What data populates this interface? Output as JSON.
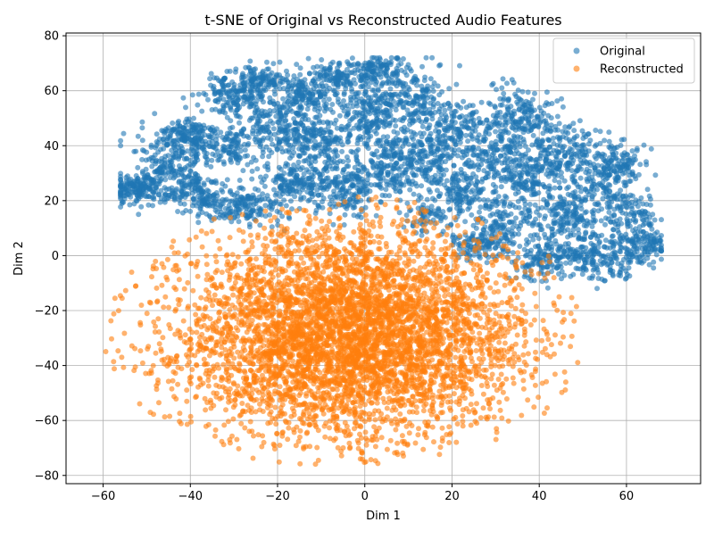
{
  "chart_data": {
    "type": "scatter",
    "title": "t-SNE of Original vs Reconstructed Audio Features",
    "xlabel": "Dim 1",
    "ylabel": "Dim 2",
    "xlim": [
      -68.5,
      77
    ],
    "ylim": [
      -83,
      81
    ],
    "xticks": [
      -60,
      -40,
      -20,
      0,
      20,
      40,
      60
    ],
    "yticks": [
      -80,
      -60,
      -40,
      -20,
      0,
      20,
      40,
      60,
      80
    ],
    "grid": true,
    "legend_position": "top-right",
    "series": [
      {
        "name": "Original",
        "color": "#1f77b4",
        "alpha": 0.6,
        "approx_count": 5000,
        "x_range": [
          -56,
          68
        ],
        "y_range": [
          -12,
          72
        ],
        "clusters": [
          {
            "x": -52,
            "y": 24,
            "sx": 3,
            "sy": 3,
            "n": 170
          },
          {
            "x": -45,
            "y": 33,
            "sx": 3.5,
            "sy": 6,
            "n": 200
          },
          {
            "x": -40,
            "y": 44,
            "sx": 3,
            "sy": 3,
            "n": 110
          },
          {
            "x": -38,
            "y": 22,
            "sx": 4,
            "sy": 4,
            "n": 150
          },
          {
            "x": -30,
            "y": 58,
            "sx": 4,
            "sy": 4,
            "n": 170
          },
          {
            "x": -32,
            "y": 40,
            "sx": 4,
            "sy": 4,
            "n": 160
          },
          {
            "x": -27,
            "y": 18,
            "sx": 4,
            "sy": 3.5,
            "n": 140
          },
          {
            "x": -24,
            "y": 64,
            "sx": 3,
            "sy": 3,
            "n": 110
          },
          {
            "x": -20,
            "y": 47,
            "sx": 4,
            "sy": 5,
            "n": 170
          },
          {
            "x": -16,
            "y": 26,
            "sx": 4,
            "sy": 5,
            "n": 170
          },
          {
            "x": -14,
            "y": 58,
            "sx": 3.5,
            "sy": 3.5,
            "n": 130
          },
          {
            "x": -10,
            "y": 42,
            "sx": 4,
            "sy": 6,
            "n": 200
          },
          {
            "x": -6,
            "y": 65,
            "sx": 4,
            "sy": 3,
            "n": 150
          },
          {
            "x": -4,
            "y": 24,
            "sx": 4,
            "sy": 5,
            "n": 170
          },
          {
            "x": 1,
            "y": 52,
            "sx": 4,
            "sy": 6,
            "n": 200
          },
          {
            "x": 4,
            "y": 68,
            "sx": 3,
            "sy": 2.5,
            "n": 90
          },
          {
            "x": 5,
            "y": 32,
            "sx": 3.5,
            "sy": 6,
            "n": 160
          },
          {
            "x": 10,
            "y": 58,
            "sx": 4,
            "sy": 6,
            "n": 180
          },
          {
            "x": 13,
            "y": 35,
            "sx": 4,
            "sy": 6,
            "n": 170
          },
          {
            "x": 14,
            "y": 14,
            "sx": 3,
            "sy": 3,
            "n": 70
          },
          {
            "x": 20,
            "y": 45,
            "sx": 4,
            "sy": 6,
            "n": 180
          },
          {
            "x": 23,
            "y": 24,
            "sx": 3.5,
            "sy": 5,
            "n": 140
          },
          {
            "x": 25,
            "y": 5,
            "sx": 3,
            "sy": 3,
            "n": 90
          },
          {
            "x": 30,
            "y": 38,
            "sx": 3.5,
            "sy": 6,
            "n": 160
          },
          {
            "x": 32,
            "y": 10,
            "sx": 4,
            "sy": 6,
            "n": 160
          },
          {
            "x": 36,
            "y": 52,
            "sx": 4,
            "sy": 5,
            "n": 160
          },
          {
            "x": 38,
            "y": 28,
            "sx": 4,
            "sy": 6,
            "n": 180
          },
          {
            "x": 40,
            "y": -2,
            "sx": 3,
            "sy": 4,
            "n": 100
          },
          {
            "x": 45,
            "y": 38,
            "sx": 4,
            "sy": 5,
            "n": 160
          },
          {
            "x": 46,
            "y": 14,
            "sx": 4,
            "sy": 5,
            "n": 150
          },
          {
            "x": 48,
            "y": 0,
            "sx": 3,
            "sy": 3,
            "n": 90
          },
          {
            "x": 53,
            "y": 24,
            "sx": 4,
            "sy": 6,
            "n": 160
          },
          {
            "x": 56,
            "y": 0,
            "sx": 4,
            "sy": 5,
            "n": 150
          },
          {
            "x": 58,
            "y": 34,
            "sx": 3,
            "sy": 4,
            "n": 110
          },
          {
            "x": 62,
            "y": 14,
            "sx": 3,
            "sy": 5,
            "n": 110
          },
          {
            "x": 65,
            "y": 4,
            "sx": 2.5,
            "sy": 3,
            "n": 80
          }
        ]
      },
      {
        "name": "Reconstructed",
        "color": "#ff7f0e",
        "alpha": 0.6,
        "approx_count": 5000,
        "x_range": [
          -62,
          49
        ],
        "y_range": [
          -76,
          24
        ],
        "center": [
          -4,
          -28
        ],
        "spread": [
          20,
          19
        ]
      }
    ]
  }
}
